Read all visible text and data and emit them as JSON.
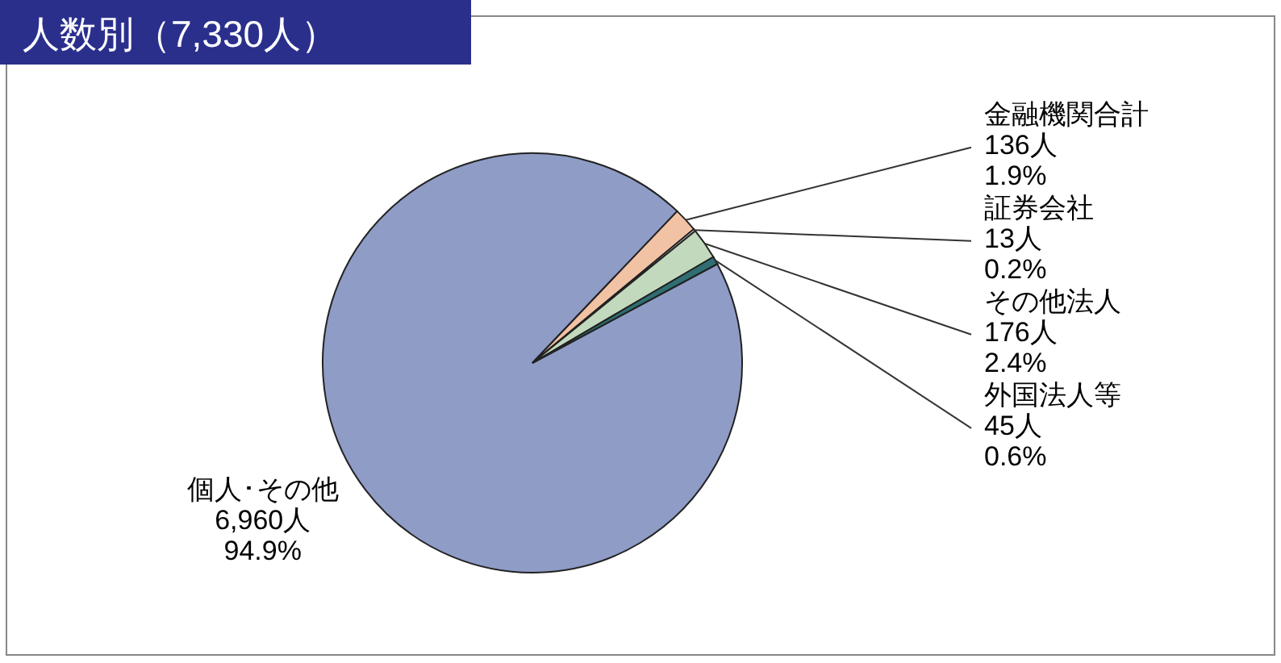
{
  "chart_data": {
    "type": "pie",
    "title": "人数別（7,330人）",
    "categories": [
      "個人･その他",
      "金融機関合計",
      "証券会社",
      "その他法人",
      "外国法人等"
    ],
    "values": [
      6960,
      136,
      13,
      176,
      45
    ],
    "colors": [
      "#8e9cc6",
      "#f2c2a4",
      "#e8e8e8",
      "#c3d9bd",
      "#2f6f73"
    ],
    "value_labels": [
      "6,960人\n94.9%",
      "136人\n1.9%",
      "13人\n0.2%",
      "176人\n2.4%",
      "45人\n0.6%"
    ]
  }
}
